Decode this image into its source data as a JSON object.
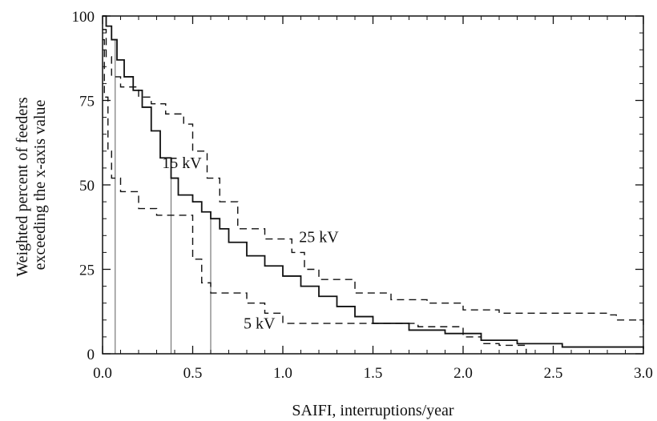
{
  "chart_data": {
    "type": "line",
    "xlabel": "SAIFI, interruptions/year",
    "ylabel_lines": [
      "Weighted percent of feeders",
      "exceeding the x-axis value"
    ],
    "xlim": [
      0,
      3
    ],
    "ylim": [
      0,
      100
    ],
    "x_ticks": [
      "0.0",
      "0.5",
      "1.0",
      "1.5",
      "2.0",
      "2.5",
      "3.0"
    ],
    "y_ticks": [
      "0",
      "25",
      "50",
      "75",
      "100"
    ],
    "grid": false,
    "series": [
      {
        "name": "15 kV",
        "style": "solid",
        "points": [
          [
            0,
            100
          ],
          [
            0.02,
            97
          ],
          [
            0.05,
            93
          ],
          [
            0.08,
            87
          ],
          [
            0.12,
            82
          ],
          [
            0.17,
            78
          ],
          [
            0.22,
            73
          ],
          [
            0.27,
            66
          ],
          [
            0.32,
            58
          ],
          [
            0.38,
            52
          ],
          [
            0.42,
            47
          ],
          [
            0.5,
            45
          ],
          [
            0.55,
            42
          ],
          [
            0.6,
            40
          ],
          [
            0.65,
            37
          ],
          [
            0.7,
            33
          ],
          [
            0.8,
            29
          ],
          [
            0.9,
            26
          ],
          [
            1.0,
            23
          ],
          [
            1.1,
            20
          ],
          [
            1.2,
            17
          ],
          [
            1.3,
            14
          ],
          [
            1.4,
            11
          ],
          [
            1.5,
            9
          ],
          [
            1.7,
            7
          ],
          [
            1.9,
            6
          ],
          [
            2.1,
            4
          ],
          [
            2.3,
            3
          ],
          [
            2.55,
            2
          ],
          [
            3.0,
            1.5
          ]
        ]
      },
      {
        "name": "25 kV",
        "style": "dashed",
        "points": [
          [
            0,
            96
          ],
          [
            0.02,
            88
          ],
          [
            0.05,
            82
          ],
          [
            0.1,
            79
          ],
          [
            0.2,
            76
          ],
          [
            0.27,
            74
          ],
          [
            0.35,
            71
          ],
          [
            0.45,
            68
          ],
          [
            0.5,
            60
          ],
          [
            0.58,
            52
          ],
          [
            0.65,
            45
          ],
          [
            0.75,
            37
          ],
          [
            0.9,
            34
          ],
          [
            1.05,
            30
          ],
          [
            1.12,
            25
          ],
          [
            1.2,
            22
          ],
          [
            1.4,
            18
          ],
          [
            1.6,
            16
          ],
          [
            1.8,
            15
          ],
          [
            2.0,
            13
          ],
          [
            2.2,
            12
          ],
          [
            2.5,
            12
          ],
          [
            2.8,
            11.5
          ],
          [
            2.85,
            10
          ],
          [
            3.0,
            7
          ]
        ]
      },
      {
        "name": "5 kV",
        "style": "dashed",
        "points": [
          [
            0,
            93
          ],
          [
            0.01,
            76
          ],
          [
            0.03,
            60
          ],
          [
            0.05,
            52
          ],
          [
            0.1,
            48
          ],
          [
            0.2,
            43
          ],
          [
            0.3,
            41
          ],
          [
            0.45,
            41
          ],
          [
            0.5,
            28
          ],
          [
            0.55,
            21
          ],
          [
            0.6,
            18
          ],
          [
            0.8,
            15
          ],
          [
            0.9,
            12
          ],
          [
            1.0,
            9
          ],
          [
            1.5,
            9
          ],
          [
            1.75,
            8
          ],
          [
            2.0,
            5
          ],
          [
            2.1,
            3
          ],
          [
            2.2,
            2.5
          ],
          [
            2.35,
            1
          ],
          [
            2.35,
            0
          ]
        ]
      }
    ],
    "reference_lines_x": [
      0.07,
      0.38,
      0.6
    ],
    "annotations": [
      {
        "text": "15 kV",
        "x": 0.44,
        "y": 55
      },
      {
        "text": "25 kV",
        "x": 1.2,
        "y": 33
      },
      {
        "text": "5 kV",
        "x": 0.87,
        "y": 7.5
      }
    ]
  }
}
